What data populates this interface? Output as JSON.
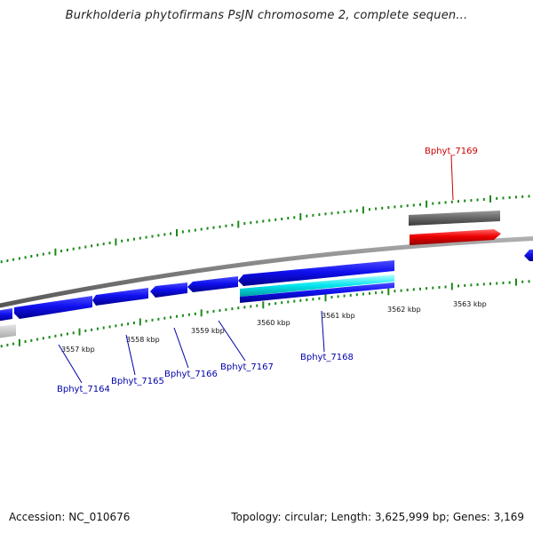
{
  "title": "Burkholderia phytofirmans PsJN chromosome 2, complete sequen...",
  "footer": {
    "accession": "Accession: NC_010676",
    "topology": "Topology: circular; Length: 3,625,999 bp; Genes: 3,169"
  },
  "scale_labels": [
    "3557 kbp",
    "3558 kbp",
    "3559 kbp",
    "3560 kbp",
    "3561 kbp",
    "3562 kbp",
    "3563 kbp"
  ],
  "genes": [
    {
      "id": "Bphyt_7164",
      "strand": "reverse",
      "color": "#0000cc"
    },
    {
      "id": "Bphyt_7165",
      "strand": "reverse",
      "color": "#0000cc"
    },
    {
      "id": "Bphyt_7166",
      "strand": "reverse",
      "color": "#0000cc"
    },
    {
      "id": "Bphyt_7167",
      "strand": "reverse",
      "color": "#0000cc"
    },
    {
      "id": "Bphyt_7168",
      "strand": "reverse",
      "color": "#0000cc"
    },
    {
      "id": "Bphyt_7169",
      "strand": "forward",
      "color": "#cc0000"
    }
  ],
  "colors": {
    "backbone": "#808080",
    "tick": "#1a8a1a",
    "gene_reverse": "#0000ee",
    "gene_forward": "#ee0000",
    "gene_label_reverse": "#0000aa",
    "gene_label_forward": "#cc0000",
    "pseudogene": "#666666",
    "rna": "#00e5ee"
  }
}
